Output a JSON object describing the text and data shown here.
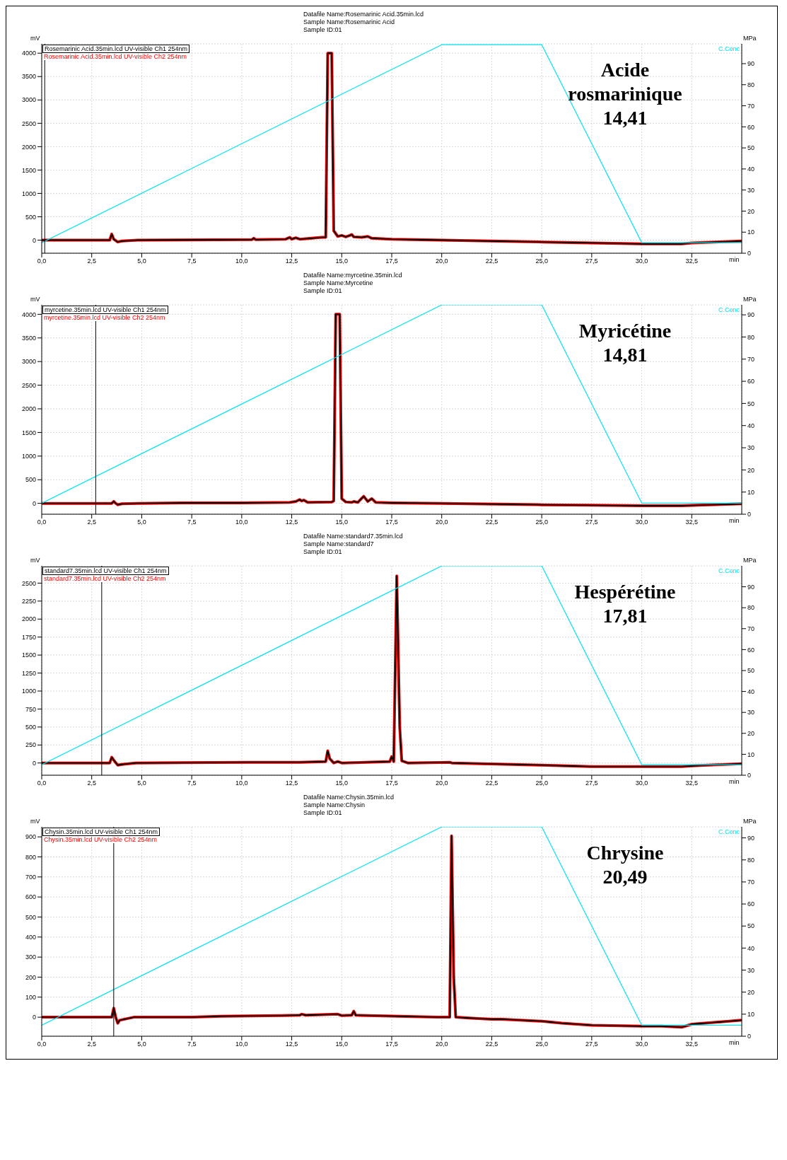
{
  "chart_data": [
    {
      "type": "line",
      "title": "Datafile Name:Rosemarinic Acid.35min.lcd",
      "subtitle": "Sample Name:Rosemarinic Acid\nSample ID:01",
      "ylabel": "mV",
      "y2label": "MPa",
      "xlabel": "min",
      "annotations": [
        "Acide\nrosmarinique\n14,41"
      ],
      "x": [
        0,
        3.4,
        3.5,
        3.6,
        3.8,
        4.0,
        4.8,
        10.5,
        10.6,
        10.7,
        12.2,
        12.4,
        12.5,
        12.7,
        12.9,
        13.5,
        14.0,
        14.2,
        14.3,
        14.5,
        14.6,
        14.8,
        15.0,
        15.2,
        15.4,
        15.5,
        15.6,
        16.0,
        16.3,
        16.5,
        17.5,
        20,
        25,
        27.5,
        30,
        32,
        32.5,
        35
      ],
      "series": [
        {
          "name": "Rosemarinic Acid.35min.lcd UV-visible Ch2 254nm",
          "color": "#ff0000",
          "values": [
            0,
            0,
            130,
            20,
            -40,
            -20,
            0,
            10,
            40,
            10,
            20,
            60,
            20,
            50,
            20,
            40,
            60,
            60,
            4000,
            4000,
            200,
            80,
            100,
            70,
            100,
            120,
            70,
            60,
            80,
            40,
            20,
            0,
            -40,
            -60,
            -80,
            -80,
            -60,
            -20
          ]
        },
        {
          "name": "Rosemarinic Acid.35min.lcd UV-visible Ch1 254nm",
          "color": "#000000",
          "values": [
            0,
            0,
            130,
            20,
            -40,
            -20,
            0,
            10,
            40,
            10,
            20,
            60,
            20,
            50,
            20,
            40,
            60,
            60,
            4000,
            4000,
            200,
            80,
            100,
            70,
            100,
            120,
            70,
            60,
            80,
            40,
            20,
            0,
            -40,
            -60,
            -80,
            -80,
            -60,
            -20
          ]
        },
        {
          "name": "C.Conc",
          "color": "#00e5ee",
          "axis": "y2",
          "x": [
            0,
            20,
            25,
            30,
            35
          ],
          "values": [
            5,
            99,
            99,
            5,
            5
          ]
        }
      ],
      "xlim": [
        0,
        35
      ],
      "xticks": [
        {
          "value": 0,
          "label": "0,0"
        },
        {
          "value": 2.5,
          "label": "2,5"
        },
        {
          "value": 5,
          "label": "5,0"
        },
        {
          "value": 7.5,
          "label": "7,5"
        },
        {
          "value": 10,
          "label": "10,0"
        },
        {
          "value": 12.5,
          "label": "12,5"
        },
        {
          "value": 15,
          "label": "15,0"
        },
        {
          "value": 17.5,
          "label": "17,5"
        },
        {
          "value": 20,
          "label": "20,0"
        },
        {
          "value": 22.5,
          "label": "22,5"
        },
        {
          "value": 25,
          "label": "25,0"
        },
        {
          "value": 27.5,
          "label": "27,5"
        },
        {
          "value": 30,
          "label": "30,0"
        },
        {
          "value": 32.5,
          "label": "32,5"
        }
      ],
      "ylim": [
        -280,
        4200
      ],
      "yticks": [
        0,
        500,
        1000,
        1500,
        2000,
        2500,
        3000,
        3500,
        4000
      ],
      "y2lim": [
        0,
        99.4
      ],
      "y2ticks": [
        0,
        10,
        20,
        30,
        40,
        50,
        60,
        70,
        80,
        90
      ],
      "ref_lines": [
        {
          "axis": "x",
          "value": 0.15,
          "color": "#000000"
        }
      ],
      "grid": true,
      "legend": "top left"
    },
    {
      "type": "line",
      "title": "Datafile Name:myrcetine.35min.lcd",
      "subtitle": "Sample Name:Myrcetine\nSample ID:01",
      "ylabel": "mV",
      "y2label": "MPa",
      "xlabel": "min",
      "annotations": [
        "Myricétine\n14,81"
      ],
      "x": [
        0,
        3.5,
        3.6,
        3.7,
        3.8,
        4.0,
        4.8,
        7.2,
        10,
        12.4,
        12.7,
        12.9,
        13.0,
        13.1,
        13.3,
        14.5,
        14.6,
        14.7,
        14.9,
        15.0,
        15.2,
        15.5,
        15.6,
        15.8,
        16.1,
        16.3,
        16.5,
        16.7,
        17.5,
        20,
        25,
        27.5,
        30,
        32,
        35
      ],
      "series": [
        {
          "name": "myrcetine.35min.lcd UV-visible Ch2 254nm",
          "color": "#ff0000",
          "values": [
            0,
            0,
            40,
            0,
            -30,
            -10,
            0,
            10,
            10,
            20,
            40,
            80,
            50,
            70,
            20,
            30,
            50,
            4000,
            4000,
            100,
            30,
            20,
            40,
            20,
            150,
            40,
            100,
            20,
            10,
            0,
            -30,
            -40,
            -50,
            -50,
            -10
          ]
        },
        {
          "name": "myrcetine.35min.lcd UV-visible Ch1 254nm",
          "color": "#000000",
          "values": [
            0,
            0,
            40,
            0,
            -30,
            -10,
            0,
            10,
            10,
            20,
            40,
            80,
            50,
            70,
            20,
            30,
            50,
            4000,
            4000,
            100,
            30,
            20,
            40,
            20,
            150,
            40,
            100,
            20,
            10,
            0,
            -30,
            -40,
            -50,
            -50,
            -10
          ]
        },
        {
          "name": "C.Conc",
          "color": "#00e5ee",
          "axis": "y2",
          "x": [
            0,
            20,
            25,
            30,
            35
          ],
          "values": [
            5,
            94.5,
            94.5,
            5,
            5
          ]
        }
      ],
      "xlim": [
        0,
        35
      ],
      "xticks": [
        {
          "value": 0,
          "label": "0,0"
        },
        {
          "value": 2.5,
          "label": "2,5"
        },
        {
          "value": 5,
          "label": "5,0"
        },
        {
          "value": 7.5,
          "label": "7,5"
        },
        {
          "value": 10,
          "label": "10,0"
        },
        {
          "value": 12.5,
          "label": "12,5"
        },
        {
          "value": 15,
          "label": "15,0"
        },
        {
          "value": 17.5,
          "label": "17,5"
        },
        {
          "value": 20,
          "label": "20,0"
        },
        {
          "value": 22.5,
          "label": "22,5"
        },
        {
          "value": 25,
          "label": "25,0"
        },
        {
          "value": 27.5,
          "label": "27,5"
        },
        {
          "value": 30,
          "label": "30,0"
        },
        {
          "value": 32.5,
          "label": "32,5"
        }
      ],
      "ylim": [
        -230,
        4200
      ],
      "yticks": [
        0,
        500,
        1000,
        1500,
        2000,
        2500,
        3000,
        3500,
        4000
      ],
      "y2lim": [
        0,
        94.5
      ],
      "y2ticks": [
        0,
        10,
        20,
        30,
        40,
        50,
        60,
        70,
        80,
        90
      ],
      "ref_lines": [
        {
          "axis": "x",
          "value": 2.7,
          "color": "#000000"
        }
      ],
      "grid": true,
      "legend": "top left"
    },
    {
      "type": "line",
      "title": "Datafile Name:standard7.35min.lcd",
      "subtitle": "Sample Name:standard7\nSample ID:01",
      "ylabel": "mV",
      "y2label": "MPa",
      "xlabel": "min",
      "annotations": [
        "Hespérétine\n17,81"
      ],
      "x": [
        0,
        3.4,
        3.5,
        3.6,
        3.8,
        4.0,
        4.7,
        10.3,
        12.9,
        14.2,
        14.3,
        14.4,
        14.6,
        14.8,
        15.0,
        17.4,
        17.5,
        17.6,
        17.75,
        17.9,
        18.0,
        18.3,
        20.4,
        20.5,
        25,
        27.5,
        30,
        32,
        32.5,
        35
      ],
      "series": [
        {
          "name": "standard7.35min.lcd UV-visible Ch2 254nm",
          "color": "#ff0000",
          "values": [
            0,
            0,
            80,
            40,
            -30,
            -20,
            0,
            10,
            10,
            20,
            170,
            60,
            0,
            20,
            0,
            20,
            90,
            20,
            2600,
            500,
            30,
            0,
            10,
            0,
            -30,
            -50,
            -50,
            -50,
            -40,
            -10
          ]
        },
        {
          "name": "standard7.35min.lcd UV-visible Ch1 254nm",
          "color": "#000000",
          "values": [
            0,
            0,
            80,
            40,
            -30,
            -20,
            0,
            10,
            10,
            20,
            170,
            60,
            0,
            20,
            0,
            20,
            90,
            20,
            2600,
            500,
            30,
            0,
            10,
            0,
            -30,
            -50,
            -50,
            -50,
            -40,
            -10
          ]
        },
        {
          "name": "C.Conc",
          "color": "#00e5ee",
          "axis": "y2",
          "x": [
            0,
            20,
            25,
            30,
            35
          ],
          "values": [
            5,
            100,
            100,
            5,
            5
          ]
        }
      ],
      "xlim": [
        0,
        35
      ],
      "xticks": [
        {
          "value": 0,
          "label": "0,0"
        },
        {
          "value": 2.5,
          "label": "2,5"
        },
        {
          "value": 5,
          "label": "5,0"
        },
        {
          "value": 7.5,
          "label": "7,5"
        },
        {
          "value": 10,
          "label": "10,0"
        },
        {
          "value": 12.5,
          "label": "12,5"
        },
        {
          "value": 15,
          "label": "15,0"
        },
        {
          "value": 17.5,
          "label": "17,5"
        },
        {
          "value": 20,
          "label": "20,0"
        },
        {
          "value": 22.5,
          "label": "22,5"
        },
        {
          "value": 25,
          "label": "25,0"
        },
        {
          "value": 27.5,
          "label": "27,5"
        },
        {
          "value": 30,
          "label": "30,0"
        },
        {
          "value": 32.5,
          "label": "32,5"
        }
      ],
      "ylim": [
        -170,
        2740
      ],
      "yticks": [
        0,
        250,
        500,
        750,
        1000,
        1250,
        1500,
        1750,
        2000,
        2250,
        2500
      ],
      "y2lim": [
        0,
        100
      ],
      "y2ticks": [
        0,
        10,
        20,
        30,
        40,
        50,
        60,
        70,
        80,
        90
      ],
      "ref_lines": [
        {
          "axis": "x",
          "value": 3.0,
          "color": "#000000"
        }
      ],
      "grid": true,
      "legend": "top left"
    },
    {
      "type": "line",
      "title": "Datafile Name:Chysin.35min.lcd",
      "subtitle": "Sample Name:Chysin\nSample ID:01",
      "ylabel": "mV",
      "y2label": "MPa",
      "xlabel": "min",
      "annotations": [
        "Chrysine\n20,49"
      ],
      "x": [
        0,
        3.5,
        3.6,
        3.7,
        3.8,
        3.9,
        4.6,
        7.5,
        9,
        12,
        12.9,
        13.0,
        13.2,
        14.8,
        15.0,
        15.5,
        15.6,
        15.7,
        19.8,
        20.4,
        20.49,
        20.6,
        20.7,
        21.5,
        22.5,
        23,
        25,
        26,
        27.5,
        30,
        31,
        32,
        32.5,
        35
      ],
      "series": [
        {
          "name": "Chysin.35min.lcd UV-visible Ch2 254nm",
          "color": "#ff0000",
          "values": [
            0,
            0,
            45,
            0,
            -30,
            -15,
            0,
            0,
            5,
            8,
            10,
            15,
            10,
            15,
            8,
            10,
            30,
            10,
            0,
            0,
            905,
            200,
            0,
            -5,
            -10,
            -10,
            -20,
            -30,
            -40,
            -45,
            -45,
            -50,
            -35,
            -15
          ]
        },
        {
          "name": "Chysin.35min.lcd UV-visible Ch1 254nm",
          "color": "#000000",
          "values": [
            0,
            0,
            45,
            0,
            -30,
            -15,
            0,
            0,
            5,
            8,
            10,
            15,
            10,
            15,
            8,
            10,
            30,
            10,
            0,
            0,
            905,
            200,
            0,
            -5,
            -10,
            -10,
            -20,
            -30,
            -40,
            -45,
            -45,
            -50,
            -35,
            -15
          ]
        },
        {
          "name": "C.Conc",
          "color": "#00e5ee",
          "axis": "y2",
          "x": [
            0,
            20,
            25,
            30,
            35
          ],
          "values": [
            5,
            95,
            95,
            5,
            5
          ]
        }
      ],
      "xlim": [
        0,
        35
      ],
      "xticks": [
        {
          "value": 0,
          "label": "0,0"
        },
        {
          "value": 2.5,
          "label": "2,5"
        },
        {
          "value": 5,
          "label": "5,0"
        },
        {
          "value": 7.5,
          "label": "7,5"
        },
        {
          "value": 10,
          "label": "10,0"
        },
        {
          "value": 12.5,
          "label": "12,5"
        },
        {
          "value": 15,
          "label": "15,0"
        },
        {
          "value": 17.5,
          "label": "17,5"
        },
        {
          "value": 20,
          "label": "20,0"
        },
        {
          "value": 22.5,
          "label": "22,5"
        },
        {
          "value": 25,
          "label": "25,0"
        },
        {
          "value": 27.5,
          "label": "27,5"
        },
        {
          "value": 30,
          "label": "30,0"
        },
        {
          "value": 32.5,
          "label": "32,5"
        }
      ],
      "ylim": [
        -95,
        950
      ],
      "yticks": [
        0,
        100,
        200,
        300,
        400,
        500,
        600,
        700,
        800,
        900
      ],
      "y2lim": [
        0,
        95
      ],
      "y2ticks": [
        0,
        10,
        20,
        30,
        40,
        50,
        60,
        70,
        80,
        90
      ],
      "ref_lines": [
        {
          "axis": "x",
          "value": 3.6,
          "color": "#000000"
        }
      ],
      "grid": true,
      "legend": "top left"
    }
  ]
}
